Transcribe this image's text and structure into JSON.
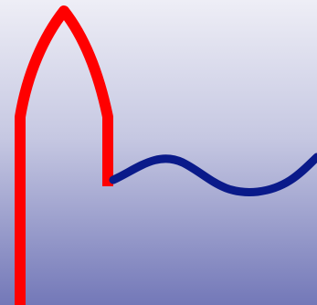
{
  "colors": {
    "background_top": "#eeeef6",
    "background_bottom": "#7378b8",
    "arch_stroke": "#ff0000",
    "wave_stroke": "#0a1a8a"
  },
  "shapes": {
    "arch": "red-pointed-arch-outline",
    "wave": "navy-wave-curve"
  }
}
